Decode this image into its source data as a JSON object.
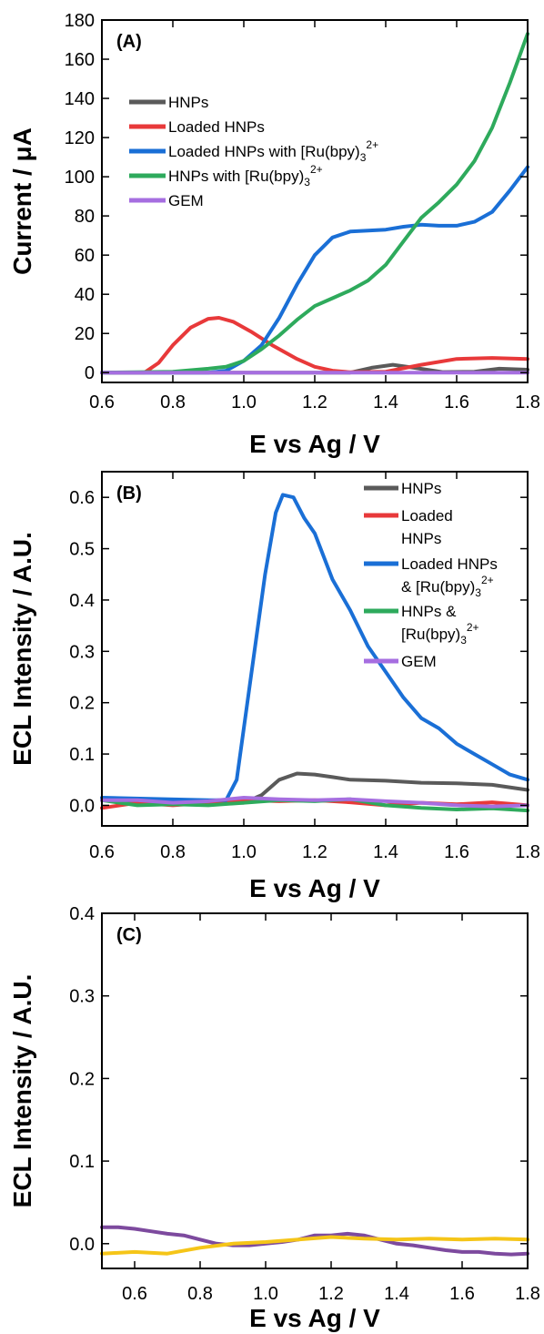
{
  "colors": {
    "HNPs": "#5a5a5a",
    "Loaded HNPs": "#e8393a",
    "Loaded HNPs with [Ru(bpy)3]2+": "#1a6fd6",
    "HNPs with [Ru(bpy)3]2+": "#2eaa5c",
    "GEM": "#a66ee0",
    "C_purple": "#7d4a9e",
    "C_yellow": "#f5c518"
  },
  "chart_data": [
    {
      "id": "A",
      "type": "line",
      "panel_label": "(A)",
      "xlabel": "E vs Ag / V",
      "ylabel": "Current / μA",
      "xlim": [
        0.6,
        1.8
      ],
      "ylim": [
        -5,
        180
      ],
      "xticks": [
        "0.6",
        "0.8",
        "1.0",
        "1.2",
        "1.4",
        "1.6",
        "1.8"
      ],
      "yticks": [
        "0",
        "20",
        "40",
        "60",
        "80",
        "100",
        "120",
        "140",
        "160",
        "180"
      ],
      "legend_position": "upper-left",
      "series": [
        {
          "name": "HNPs",
          "label_main": "HNPs",
          "sub": "",
          "sup": "",
          "points": [
            [
              0.6,
              0
            ],
            [
              1.3,
              0
            ],
            [
              1.36,
              2.5
            ],
            [
              1.42,
              4
            ],
            [
              1.48,
              2.5
            ],
            [
              1.56,
              0.3
            ],
            [
              1.65,
              0.5
            ],
            [
              1.72,
              2
            ],
            [
              1.8,
              1.5
            ]
          ]
        },
        {
          "name": "Loaded HNPs",
          "label_main": "Loaded HNPs",
          "sub": "",
          "sup": "",
          "points": [
            [
              0.6,
              0
            ],
            [
              0.72,
              0
            ],
            [
              0.76,
              5
            ],
            [
              0.8,
              14
            ],
            [
              0.85,
              23
            ],
            [
              0.9,
              27.5
            ],
            [
              0.93,
              28
            ],
            [
              0.97,
              26
            ],
            [
              1.02,
              21
            ],
            [
              1.08,
              14
            ],
            [
              1.15,
              7
            ],
            [
              1.2,
              3
            ],
            [
              1.25,
              1
            ],
            [
              1.3,
              0.2
            ],
            [
              1.4,
              0.5
            ],
            [
              1.5,
              4
            ],
            [
              1.6,
              7
            ],
            [
              1.7,
              7.5
            ],
            [
              1.8,
              7
            ]
          ]
        },
        {
          "name": "Loaded HNPs with [Ru(bpy)3]2+",
          "label_main": "Loaded HNPs with [Ru(bpy)",
          "sub": "3",
          "sup": "2+",
          "points": [
            [
              0.6,
              0
            ],
            [
              0.9,
              0
            ],
            [
              0.95,
              1
            ],
            [
              1.0,
              6
            ],
            [
              1.05,
              14
            ],
            [
              1.1,
              28
            ],
            [
              1.15,
              45
            ],
            [
              1.2,
              60
            ],
            [
              1.25,
              69
            ],
            [
              1.3,
              72
            ],
            [
              1.35,
              72.5
            ],
            [
              1.4,
              73
            ],
            [
              1.45,
              74.5
            ],
            [
              1.5,
              75.5
            ],
            [
              1.55,
              75
            ],
            [
              1.6,
              75
            ],
            [
              1.65,
              77
            ],
            [
              1.7,
              82
            ],
            [
              1.75,
              93
            ],
            [
              1.8,
              105
            ]
          ]
        },
        {
          "name": "HNPs with [Ru(bpy)3]2+",
          "label_main": "HNPs with [Ru(bpy)",
          "sub": "3",
          "sup": "2+",
          "points": [
            [
              0.6,
              0
            ],
            [
              0.8,
              0.5
            ],
            [
              0.9,
              2
            ],
            [
              0.95,
              3
            ],
            [
              1.0,
              6
            ],
            [
              1.05,
              12
            ],
            [
              1.1,
              19
            ],
            [
              1.15,
              27
            ],
            [
              1.2,
              34
            ],
            [
              1.25,
              38
            ],
            [
              1.3,
              42
            ],
            [
              1.35,
              47
            ],
            [
              1.4,
              55
            ],
            [
              1.45,
              67
            ],
            [
              1.5,
              79
            ],
            [
              1.55,
              87
            ],
            [
              1.6,
              96
            ],
            [
              1.65,
              108
            ],
            [
              1.7,
              125
            ],
            [
              1.75,
              148
            ],
            [
              1.8,
              173
            ]
          ]
        },
        {
          "name": "GEM",
          "label_main": "GEM",
          "sub": "",
          "sup": "",
          "points": [
            [
              0.6,
              0
            ],
            [
              1.8,
              0
            ]
          ]
        }
      ]
    },
    {
      "id": "B",
      "type": "line",
      "panel_label": "(B)",
      "xlabel": "E vs Ag / V",
      "ylabel": "ECL Intensity / A.U.",
      "xlim": [
        0.6,
        1.8
      ],
      "ylim": [
        -0.04,
        0.65
      ],
      "xticks": [
        "0.6",
        "0.8",
        "1.0",
        "1.2",
        "1.4",
        "1.6",
        "1.8"
      ],
      "yticks": [
        "0.0",
        "0.1",
        "0.2",
        "0.3",
        "0.4",
        "0.5",
        "0.6"
      ],
      "legend_position": "top-right",
      "legend_entries": [
        {
          "name": "HNPs",
          "lines": [
            {
              "main": "HNPs",
              "sub": "",
              "sup": ""
            }
          ]
        },
        {
          "name": "Loaded HNPs",
          "lines": [
            {
              "main": "Loaded",
              "sub": "",
              "sup": ""
            },
            {
              "main": "HNPs",
              "sub": "",
              "sup": ""
            }
          ]
        },
        {
          "name": "Loaded HNPs with [Ru(bpy)3]2+",
          "lines": [
            {
              "main": "Loaded HNPs",
              "sub": "",
              "sup": ""
            },
            {
              "main": "& [Ru(bpy)",
              "sub": "3",
              "sup": "2+"
            }
          ]
        },
        {
          "name": "HNPs with [Ru(bpy)3]2+",
          "lines": [
            {
              "main": "HNPs &",
              "sub": "",
              "sup": ""
            },
            {
              "main": "[Ru(bpy)",
              "sub": "3",
              "sup": "2+"
            }
          ]
        },
        {
          "name": "GEM",
          "lines": [
            {
              "main": "GEM",
              "sub": "",
              "sup": ""
            }
          ]
        }
      ],
      "series": [
        {
          "name": "HNPs",
          "points": [
            [
              0.6,
              0.01
            ],
            [
              1.0,
              0.005
            ],
            [
              1.05,
              0.02
            ],
            [
              1.1,
              0.05
            ],
            [
              1.15,
              0.062
            ],
            [
              1.2,
              0.06
            ],
            [
              1.25,
              0.055
            ],
            [
              1.3,
              0.05
            ],
            [
              1.4,
              0.048
            ],
            [
              1.5,
              0.044
            ],
            [
              1.6,
              0.043
            ],
            [
              1.7,
              0.04
            ],
            [
              1.8,
              0.03
            ]
          ]
        },
        {
          "name": "Loaded HNPs",
          "points": [
            [
              0.6,
              -0.005
            ],
            [
              0.7,
              0.005
            ],
            [
              0.8,
              0.0
            ],
            [
              0.9,
              0.005
            ],
            [
              1.0,
              0.01
            ],
            [
              1.1,
              0.008
            ],
            [
              1.2,
              0.01
            ],
            [
              1.3,
              0.006
            ],
            [
              1.4,
              0.0
            ],
            [
              1.5,
              0.005
            ],
            [
              1.6,
              0.002
            ],
            [
              1.7,
              0.006
            ],
            [
              1.8,
              0.0
            ]
          ]
        },
        {
          "name": "Loaded HNPs with [Ru(bpy)3]2+",
          "points": [
            [
              0.6,
              0.015
            ],
            [
              0.9,
              0.01
            ],
            [
              0.95,
              0.01
            ],
            [
              0.98,
              0.05
            ],
            [
              1.0,
              0.15
            ],
            [
              1.03,
              0.3
            ],
            [
              1.06,
              0.45
            ],
            [
              1.09,
              0.57
            ],
            [
              1.11,
              0.605
            ],
            [
              1.14,
              0.6
            ],
            [
              1.17,
              0.56
            ],
            [
              1.2,
              0.53
            ],
            [
              1.25,
              0.44
            ],
            [
              1.3,
              0.38
            ],
            [
              1.35,
              0.31
            ],
            [
              1.4,
              0.26
            ],
            [
              1.45,
              0.21
            ],
            [
              1.5,
              0.17
            ],
            [
              1.55,
              0.15
            ],
            [
              1.6,
              0.12
            ],
            [
              1.65,
              0.1
            ],
            [
              1.7,
              0.08
            ],
            [
              1.75,
              0.06
            ],
            [
              1.8,
              0.05
            ]
          ]
        },
        {
          "name": "HNPs with [Ru(bpy)3]2+",
          "points": [
            [
              0.6,
              0.01
            ],
            [
              0.7,
              0.0
            ],
            [
              0.8,
              0.002
            ],
            [
              0.9,
              0.0
            ],
            [
              1.0,
              0.005
            ],
            [
              1.1,
              0.01
            ],
            [
              1.2,
              0.008
            ],
            [
              1.3,
              0.012
            ],
            [
              1.4,
              0.0
            ],
            [
              1.5,
              -0.005
            ],
            [
              1.6,
              -0.008
            ],
            [
              1.7,
              -0.006
            ],
            [
              1.8,
              -0.01
            ]
          ]
        },
        {
          "name": "GEM",
          "points": [
            [
              0.6,
              0.01
            ],
            [
              0.7,
              0.01
            ],
            [
              0.8,
              0.005
            ],
            [
              0.9,
              0.008
            ],
            [
              1.0,
              0.015
            ],
            [
              1.1,
              0.012
            ],
            [
              1.2,
              0.01
            ],
            [
              1.3,
              0.012
            ],
            [
              1.4,
              0.008
            ],
            [
              1.5,
              0.005
            ],
            [
              1.6,
              0.0
            ],
            [
              1.7,
              -0.002
            ],
            [
              1.8,
              0.0
            ]
          ]
        }
      ]
    },
    {
      "id": "C",
      "type": "line",
      "panel_label": "(C)",
      "xlabel": "E vs Ag / V",
      "ylabel": "ECL Intensity / A.U.",
      "xlim": [
        0.5,
        1.8
      ],
      "ylim": [
        -0.03,
        0.4
      ],
      "xticks": [
        "0.6",
        "0.8",
        "1.0",
        "1.2",
        "1.4",
        "1.6",
        "1.8"
      ],
      "yticks": [
        "0.0",
        "0.1",
        "0.2",
        "0.3",
        "0.4"
      ],
      "series": [
        {
          "color_key": "C_purple",
          "points": [
            [
              0.5,
              0.02
            ],
            [
              0.55,
              0.02
            ],
            [
              0.6,
              0.018
            ],
            [
              0.65,
              0.015
            ],
            [
              0.7,
              0.012
            ],
            [
              0.75,
              0.01
            ],
            [
              0.8,
              0.005
            ],
            [
              0.85,
              0.0
            ],
            [
              0.9,
              -0.002
            ],
            [
              0.95,
              -0.002
            ],
            [
              1.0,
              0.0
            ],
            [
              1.05,
              0.002
            ],
            [
              1.1,
              0.005
            ],
            [
              1.15,
              0.01
            ],
            [
              1.2,
              0.01
            ],
            [
              1.25,
              0.012
            ],
            [
              1.3,
              0.01
            ],
            [
              1.35,
              0.005
            ],
            [
              1.4,
              0.0
            ],
            [
              1.45,
              -0.002
            ],
            [
              1.5,
              -0.005
            ],
            [
              1.55,
              -0.008
            ],
            [
              1.6,
              -0.01
            ],
            [
              1.65,
              -0.01
            ],
            [
              1.7,
              -0.012
            ],
            [
              1.75,
              -0.013
            ],
            [
              1.8,
              -0.012
            ]
          ]
        },
        {
          "color_key": "C_yellow",
          "points": [
            [
              0.5,
              -0.012
            ],
            [
              0.6,
              -0.01
            ],
            [
              0.7,
              -0.012
            ],
            [
              0.8,
              -0.005
            ],
            [
              0.9,
              0.0
            ],
            [
              1.0,
              0.002
            ],
            [
              1.1,
              0.005
            ],
            [
              1.2,
              0.008
            ],
            [
              1.3,
              0.006
            ],
            [
              1.4,
              0.005
            ],
            [
              1.5,
              0.006
            ],
            [
              1.6,
              0.005
            ],
            [
              1.7,
              0.006
            ],
            [
              1.8,
              0.005
            ]
          ]
        }
      ]
    }
  ]
}
